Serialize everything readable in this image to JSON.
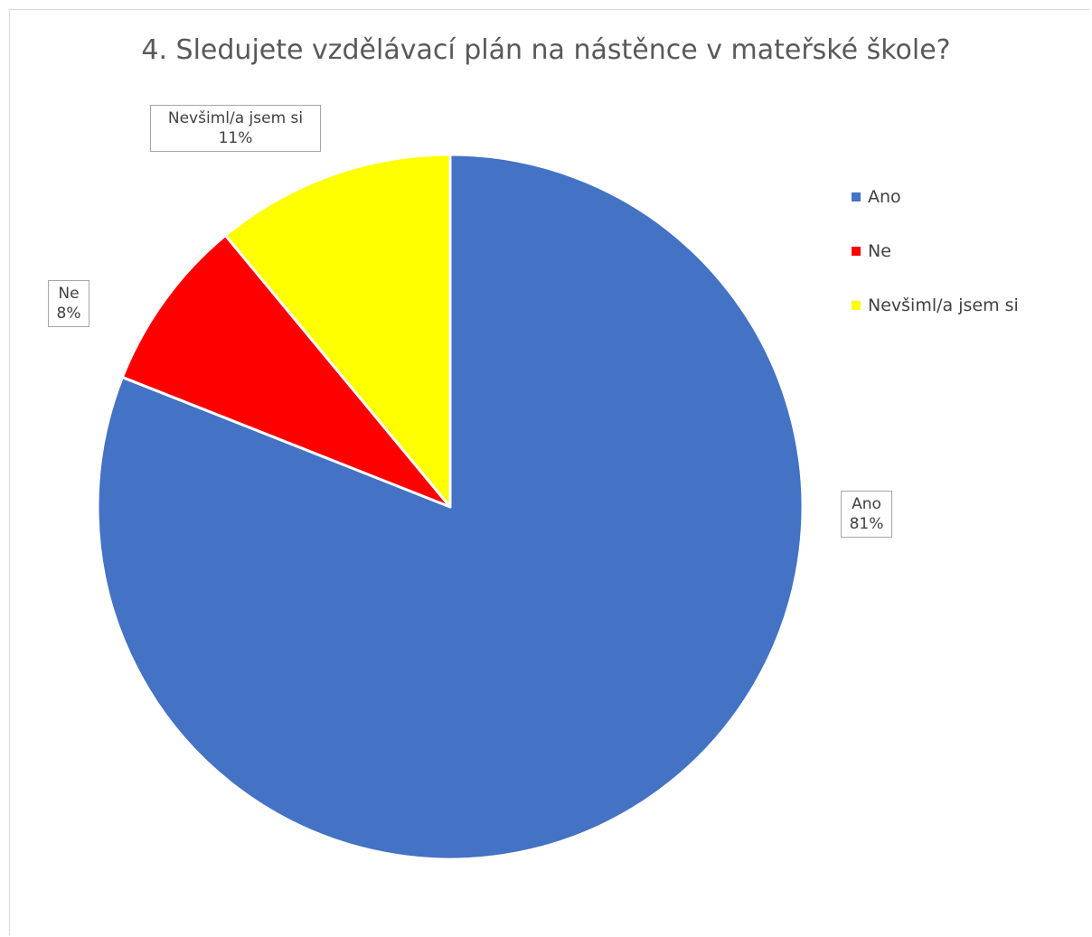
{
  "chart_data": {
    "type": "pie",
    "title": "4. Sledujete vzdělávací plán na nástěnce v mateřské škole?",
    "slices": [
      {
        "label": "Ano",
        "value": 81,
        "value_label": "81%",
        "color": "#4472C4"
      },
      {
        "label": "Ne",
        "value": 8,
        "value_label": "8%",
        "color": "#FF0000"
      },
      {
        "label": "Nevšiml/a jsem si",
        "value": 11,
        "value_label": "11%",
        "color": "#FFFF00"
      }
    ],
    "legend_position": "right"
  }
}
